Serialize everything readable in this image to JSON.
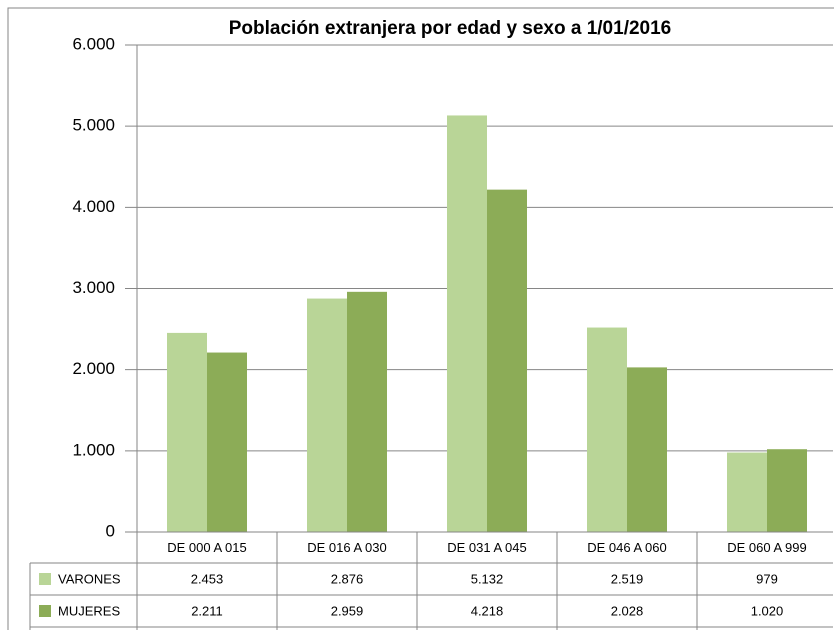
{
  "chart_data": {
    "type": "bar",
    "title": "Población extranjera por edad y sexo a 1/01/2016",
    "categories": [
      "DE 000 A 015",
      "DE 016 A 030",
      "DE 031 A 045",
      "DE 046 A 060",
      "DE 060 A 999"
    ],
    "series": [
      {
        "name": "VARONES",
        "color": "#b9d597",
        "values": [
          2453,
          2876,
          5132,
          2519,
          979
        ],
        "value_labels": [
          "2.453",
          "2.876",
          "5.132",
          "2.519",
          "979"
        ]
      },
      {
        "name": "MUJERES",
        "color": "#8cac57",
        "values": [
          2211,
          2959,
          4218,
          2028,
          1020
        ],
        "value_labels": [
          "2.211",
          "2.959",
          "4.218",
          "2.028",
          "1.020"
        ]
      }
    ],
    "ylim": [
      0,
      6000
    ],
    "yticks": [
      0,
      {
        "value": 1000,
        "label": "1.000"
      },
      {
        "value": 2000,
        "label": "2.000"
      },
      {
        "value": 3000,
        "label": "3.000"
      },
      {
        "value": 4000,
        "label": "4.000"
      },
      {
        "value": 5000,
        "label": "5.000"
      },
      {
        "value": 6000,
        "label": "6.000"
      }
    ],
    "grid": true
  }
}
